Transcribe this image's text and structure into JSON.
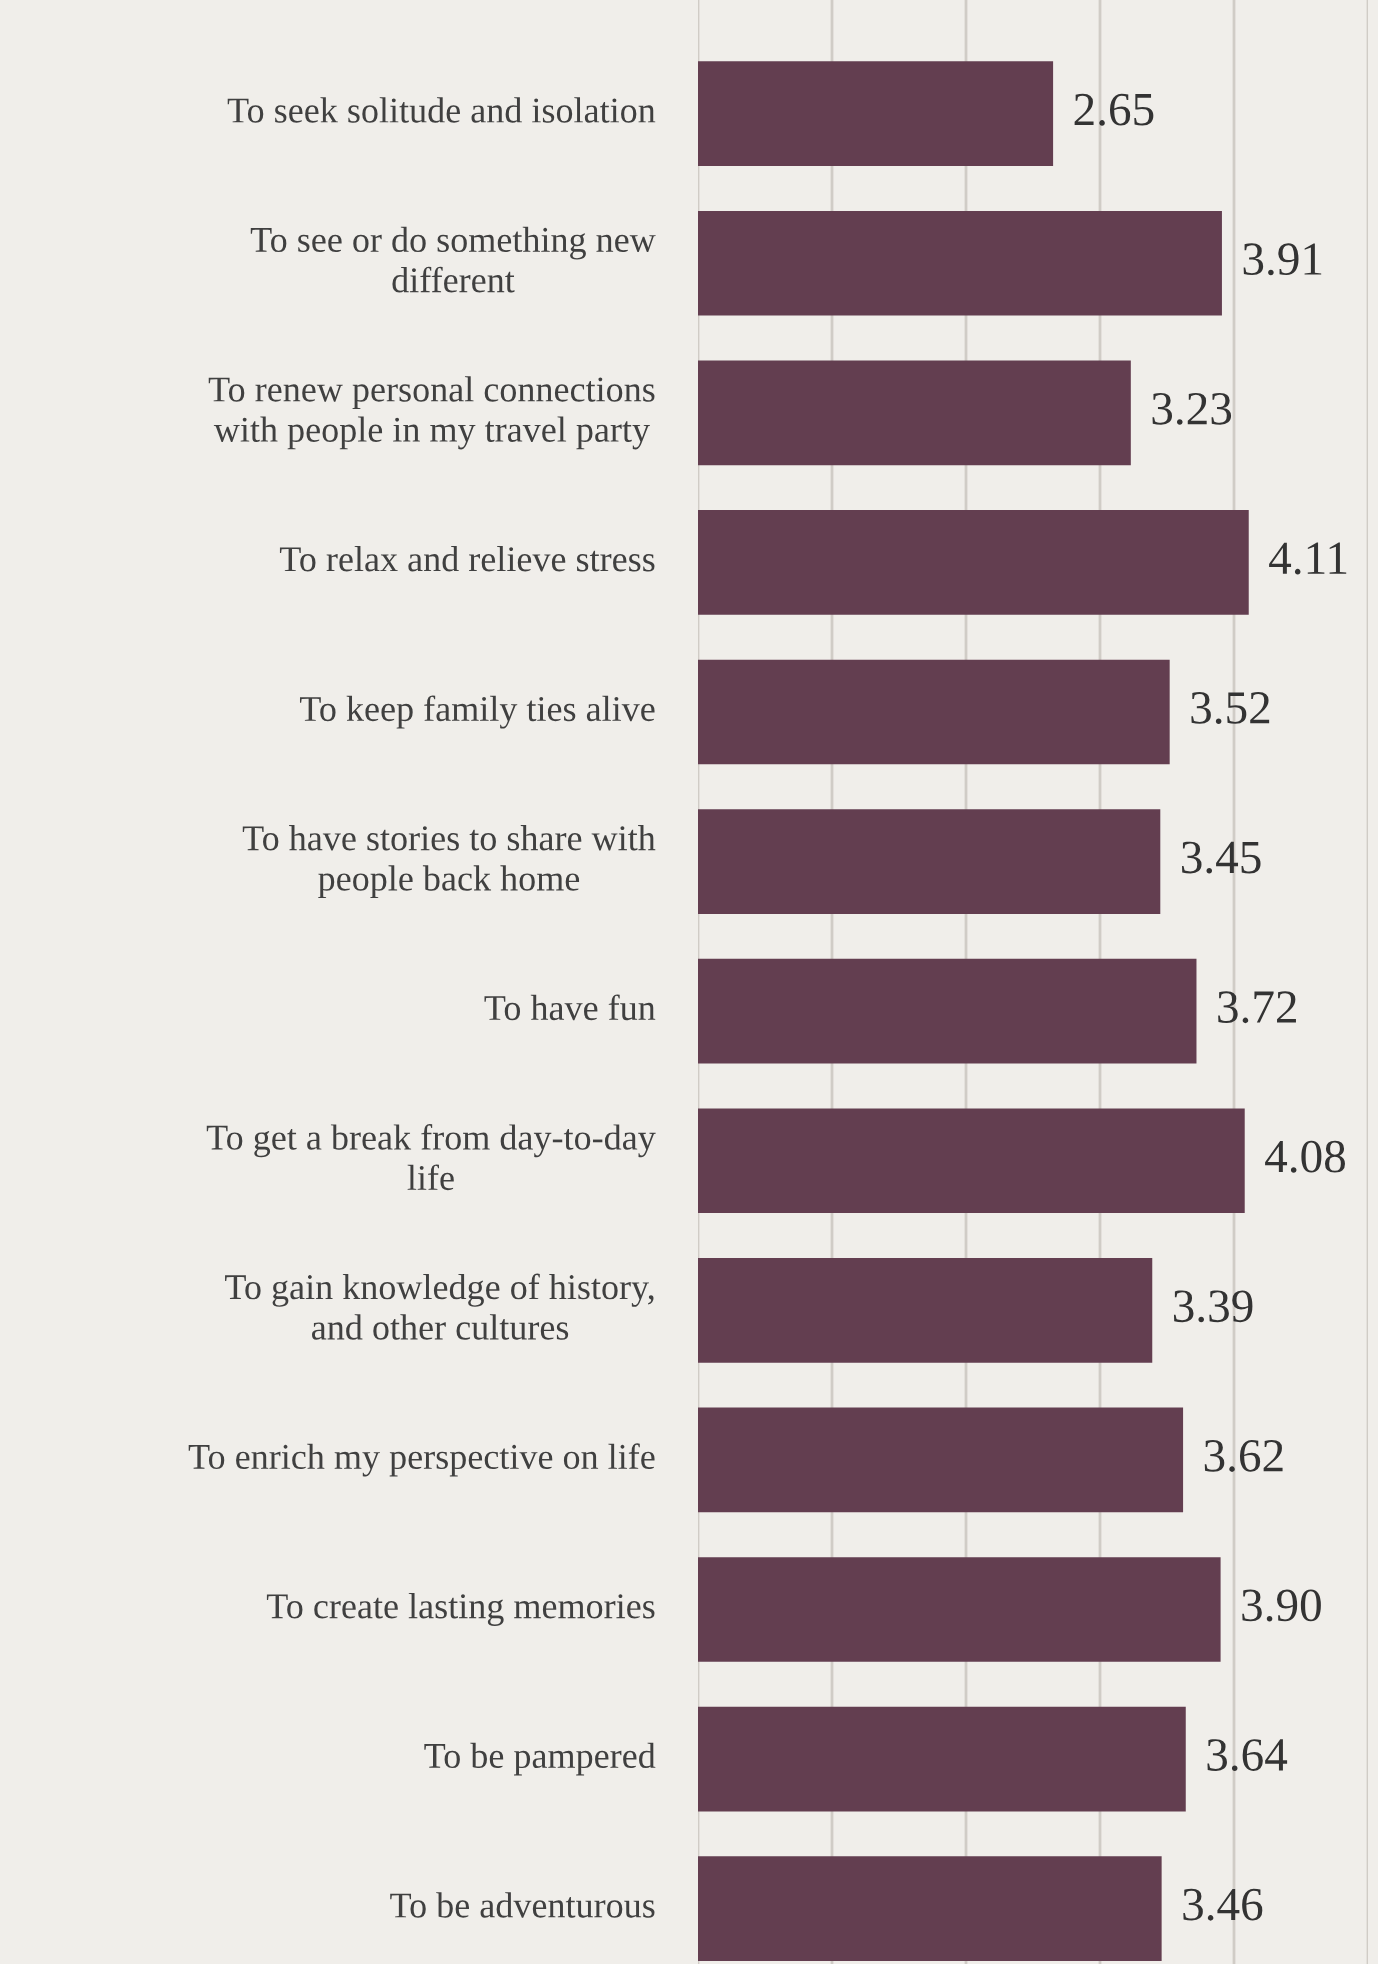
{
  "chart_data": {
    "type": "bar",
    "orientation": "horizontal",
    "categories": [
      "To seek solitude and isolation",
      "To see or do something new\ndifferent",
      "To renew personal connections\nwith people in my travel party",
      "To relax and relieve stress",
      "To keep family ties alive",
      "To have stories to share with\npeople back home",
      "To have fun",
      "To get a break from day-to-day\nlife",
      "To gain knowledge of history,\nand other cultures",
      "To enrich my perspective on life",
      "To create lasting memories",
      "To be pampered",
      "To be adventurous"
    ],
    "values": [
      2.65,
      3.91,
      3.23,
      4.11,
      3.52,
      3.45,
      3.72,
      4.08,
      3.39,
      3.62,
      3.9,
      3.64,
      3.46
    ],
    "value_labels": [
      "2.65",
      "3.91",
      "3.23",
      "4.11",
      "3.52",
      "3.45",
      "3.72",
      "4.08",
      "3.39",
      "3.62",
      "3.90",
      "3.64",
      "3.46"
    ],
    "color": "#633e50",
    "xlim": [
      0,
      5
    ],
    "xticks": [
      {
        "value": 0,
        "label": null
      },
      {
        "value": 1,
        "label": null
      },
      {
        "value": 2,
        "label": null
      },
      {
        "value": 3,
        "label": null
      },
      {
        "value": 4,
        "label": null
      },
      {
        "value": 5,
        "label": null
      }
    ],
    "grid": "x",
    "tick_labels": "y"
  }
}
